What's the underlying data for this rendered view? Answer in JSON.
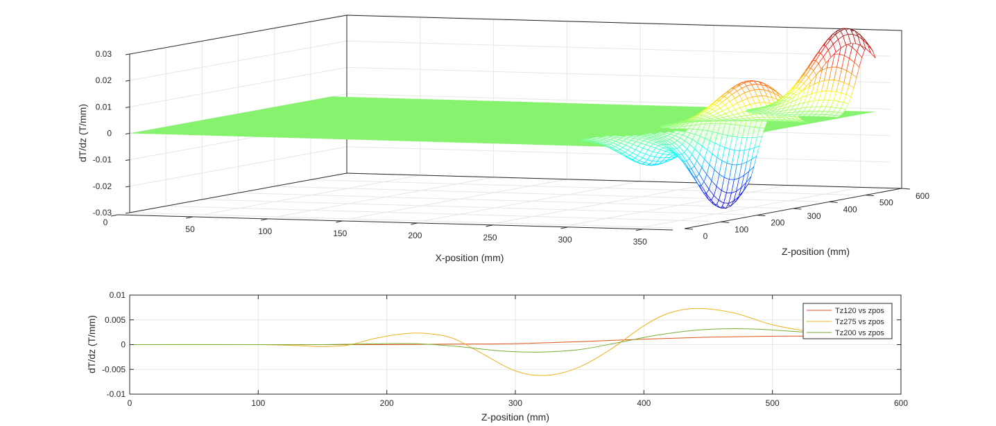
{
  "chart_data": [
    {
      "type": "surface",
      "title": "",
      "xlabel": "X-position (mm)",
      "ylabel": "Z-position (mm)",
      "zlabel": "dT/dz (T/mm)",
      "xlim": [
        0,
        370
      ],
      "ylim": [
        0,
        600
      ],
      "zlim": [
        -0.03,
        0.03
      ],
      "x_ticks": [
        "0",
        "50",
        "100",
        "150",
        "200",
        "250",
        "300",
        "350"
      ],
      "y_ticks": [
        "0",
        "100",
        "200",
        "300",
        "400",
        "500",
        "600"
      ],
      "z_ticks": [
        "0.03",
        "0.02",
        "0.01",
        "0",
        "-0.01",
        "-0.02",
        "-0.03"
      ],
      "grid": true,
      "colormap": "jet",
      "features": [
        {
          "x": 350,
          "y": 300,
          "z": 0.018,
          "kind": "peak"
        },
        {
          "x": 355,
          "y": 200,
          "z": -0.028,
          "kind": "trough"
        },
        {
          "x": 355,
          "y": 540,
          "z": 0.032,
          "kind": "peak"
        },
        {
          "x": 325,
          "y": 120,
          "z": -0.01,
          "kind": "trough"
        }
      ]
    },
    {
      "type": "line",
      "title": "",
      "xlabel": "Z-position (mm)",
      "ylabel": "dT/dz (T/mm)",
      "xlim": [
        0,
        600
      ],
      "ylim": [
        -0.01,
        0.01
      ],
      "x_ticks": [
        "0",
        "100",
        "200",
        "300",
        "400",
        "500",
        "600"
      ],
      "y_ticks": [
        "0.01",
        "0.005",
        "0",
        "-0.005",
        "-0.01"
      ],
      "grid": true,
      "legend_position": "top-right",
      "series": [
        {
          "name": "Tz120 vs zpos",
          "color": "#d95319",
          "x": [
            0,
            100,
            200,
            250,
            300,
            350,
            400,
            450,
            500,
            550
          ],
          "values": [
            0,
            0,
            0,
            0.0001,
            0.0002,
            0.0006,
            0.0011,
            0.0015,
            0.0017,
            0.0017
          ]
        },
        {
          "name": "Tz275 vs zpos",
          "color": "#edb120",
          "x": [
            0,
            100,
            130,
            150,
            170,
            190,
            210,
            228,
            250,
            270,
            300,
            325,
            350,
            375,
            400,
            420,
            442,
            470,
            500,
            530,
            550
          ],
          "values": [
            0,
            0,
            -0.0002,
            -0.0004,
            -0.0001,
            0.0012,
            0.0021,
            0.0023,
            0.0014,
            -0.0012,
            -0.0053,
            -0.0062,
            -0.0045,
            -0.0008,
            0.0038,
            0.0064,
            0.0073,
            0.0064,
            0.004,
            0.0026,
            0.0021
          ]
        },
        {
          "name": "Tz200 vs zpos",
          "color": "#77ac30",
          "x": [
            0,
            100,
            150,
            200,
            230,
            260,
            290,
            320,
            350,
            380,
            410,
            440,
            465,
            490,
            520,
            550
          ],
          "values": [
            0,
            0,
            0,
            0.0002,
            0.0001,
            -0.0005,
            -0.0013,
            -0.0015,
            -0.001,
            0.0004,
            0.0019,
            0.0029,
            0.0032,
            0.0031,
            0.0026,
            0.0021
          ]
        }
      ]
    }
  ]
}
